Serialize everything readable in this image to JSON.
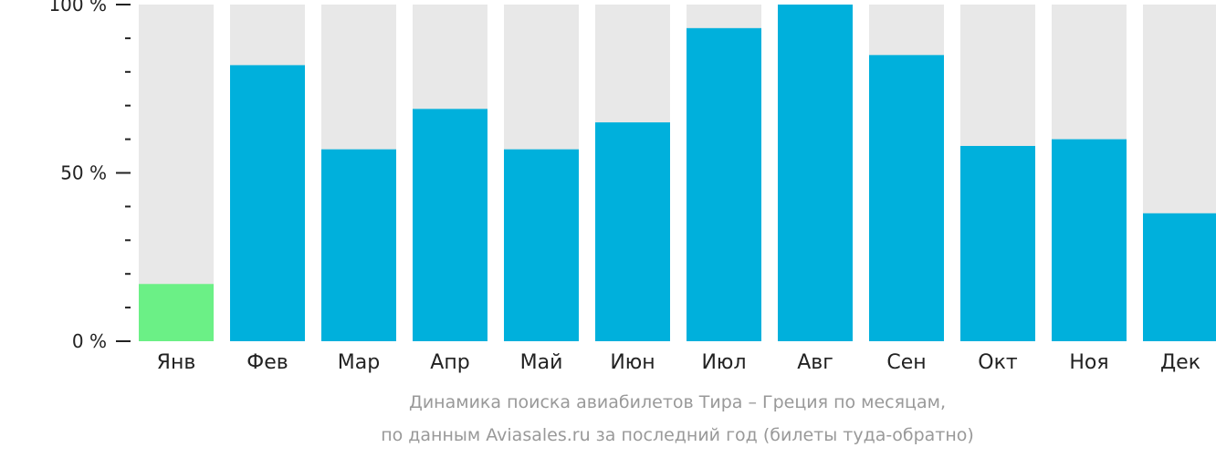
{
  "chart_data": {
    "type": "bar",
    "categories": [
      "Янв",
      "Фев",
      "Мар",
      "Апр",
      "Май",
      "Июн",
      "Июл",
      "Авг",
      "Сен",
      "Окт",
      "Ноя",
      "Дек"
    ],
    "values": [
      17,
      82,
      57,
      69,
      57,
      65,
      93,
      100,
      85,
      58,
      60,
      38
    ],
    "ylim": [
      0,
      100
    ],
    "yticks": [
      {
        "value": 0,
        "label": "0 %"
      },
      {
        "value": 50,
        "label": "50 %"
      },
      {
        "value": 100,
        "label": "100 %"
      }
    ],
    "minor_tick_step": 10,
    "highlight_index": 0,
    "colors": {
      "bar": "#00b0dc",
      "highlight": "#6bf086",
      "background_bar": "#e8e8e8",
      "axis": "#222222"
    },
    "grid": false,
    "legend": "none"
  },
  "caption": {
    "line1": "Динамика поиска авиабилетов Тира – Греция по месяцам,",
    "line2": "по данным Aviasales.ru за последний год (билеты туда-обратно)"
  }
}
